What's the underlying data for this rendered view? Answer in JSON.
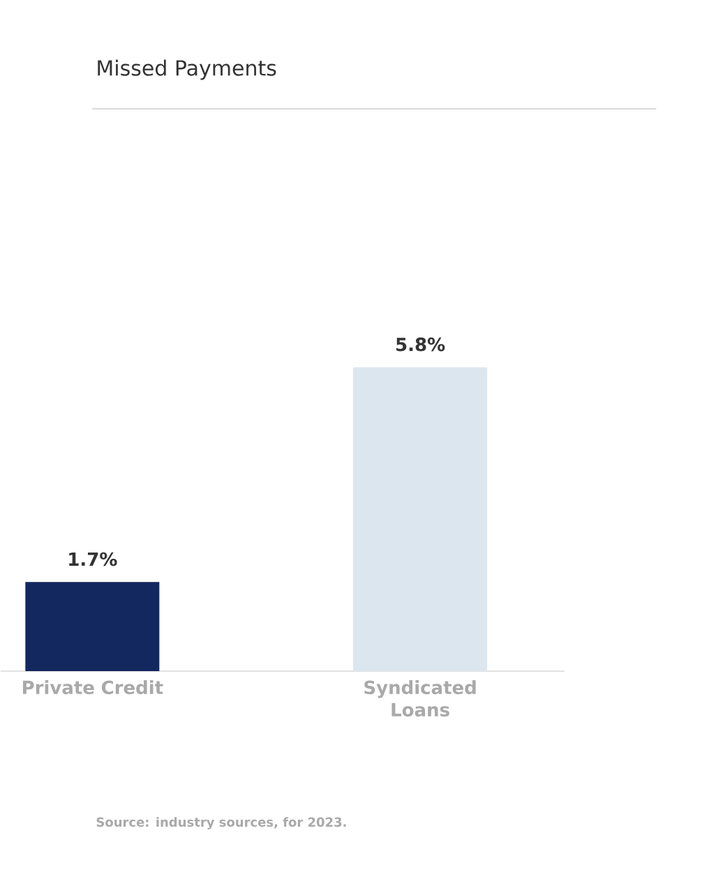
{
  "chart_data": {
    "type": "bar",
    "title": "Missed Payments",
    "categories": [
      "Private Credit",
      "Syndicated Loans"
    ],
    "values": [
      1.7,
      5.8
    ],
    "colors": [
      "#13285e",
      "#dce6ee"
    ],
    "value_labels": [
      "1.7%",
      "5.8%"
    ],
    "annotations": [
      "Source: industry sources, for 2023."
    ]
  }
}
